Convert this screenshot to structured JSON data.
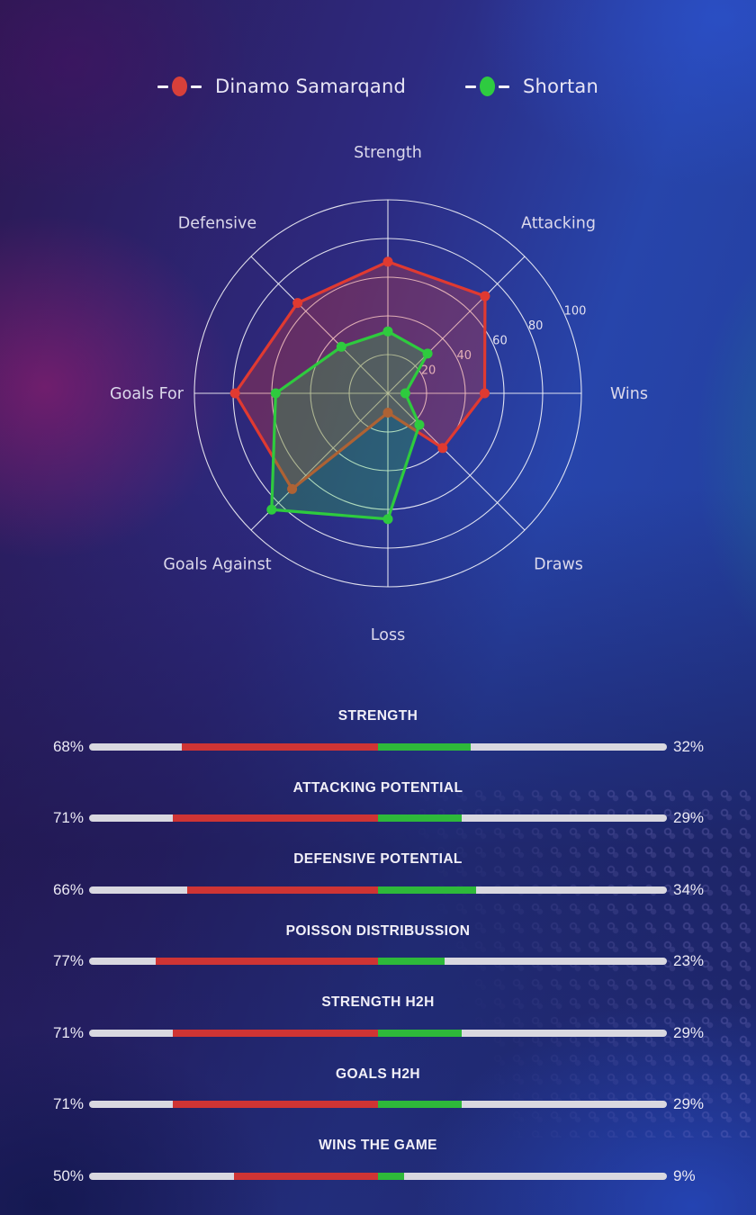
{
  "legend": {
    "items": [
      {
        "label": "Dinamo Samarqand",
        "color": "#d8403a"
      },
      {
        "label": "Shortan",
        "color": "#2ecb40"
      }
    ]
  },
  "chart_data": {
    "type": "radar",
    "axes": [
      "Strength",
      "Attacking",
      "Wins",
      "Draws",
      "Loss",
      "Goals Against",
      "Goals For",
      "Defensive"
    ],
    "r_max": 100,
    "r_ticks": [
      20,
      40,
      60,
      80,
      100
    ],
    "start_axis_position": "top",
    "direction": "clockwise",
    "grid": "circular",
    "series": [
      {
        "name": "Dinamo Samarqand",
        "color": "#e03a31",
        "fill": "rgba(224,58,49,0.30)",
        "values": [
          68,
          71,
          50,
          40,
          10,
          70,
          79,
          66
        ]
      },
      {
        "name": "Shortan",
        "color": "#2ecb3e",
        "fill": "rgba(46,203,62,0.28)",
        "values": [
          32,
          29,
          9,
          23,
          65,
          85,
          58,
          34
        ]
      }
    ]
  },
  "stats": [
    {
      "title": "STRENGTH",
      "left_label": "68%",
      "right_label": "32%",
      "left_pct": 68,
      "right_pct": 32
    },
    {
      "title": "ATTACKING POTENTIAL",
      "left_label": "71%",
      "right_label": "29%",
      "left_pct": 71,
      "right_pct": 29
    },
    {
      "title": "DEFENSIVE POTENTIAL",
      "left_label": "66%",
      "right_label": "34%",
      "left_pct": 66,
      "right_pct": 34
    },
    {
      "title": "POISSON DISTRIBUSSION",
      "left_label": "77%",
      "right_label": "23%",
      "left_pct": 77,
      "right_pct": 23
    },
    {
      "title": "STRENGTH H2H",
      "left_label": "71%",
      "right_label": "29%",
      "left_pct": 71,
      "right_pct": 29
    },
    {
      "title": "GOALS H2H",
      "left_label": "71%",
      "right_label": "29%",
      "left_pct": 71,
      "right_pct": 29
    },
    {
      "title": "WINS THE GAME",
      "left_label": "50%",
      "right_label": "9%",
      "left_pct": 50,
      "right_pct": 9
    }
  ],
  "colors": {
    "bar_home": "#cf3434",
    "bar_away": "#2eb93a",
    "bar_track": "#d9d8e0",
    "grid_line": "rgba(255,255,255,0.85)",
    "axis_label": "#dcd9ec",
    "tick_label": "#e4e1f0"
  }
}
